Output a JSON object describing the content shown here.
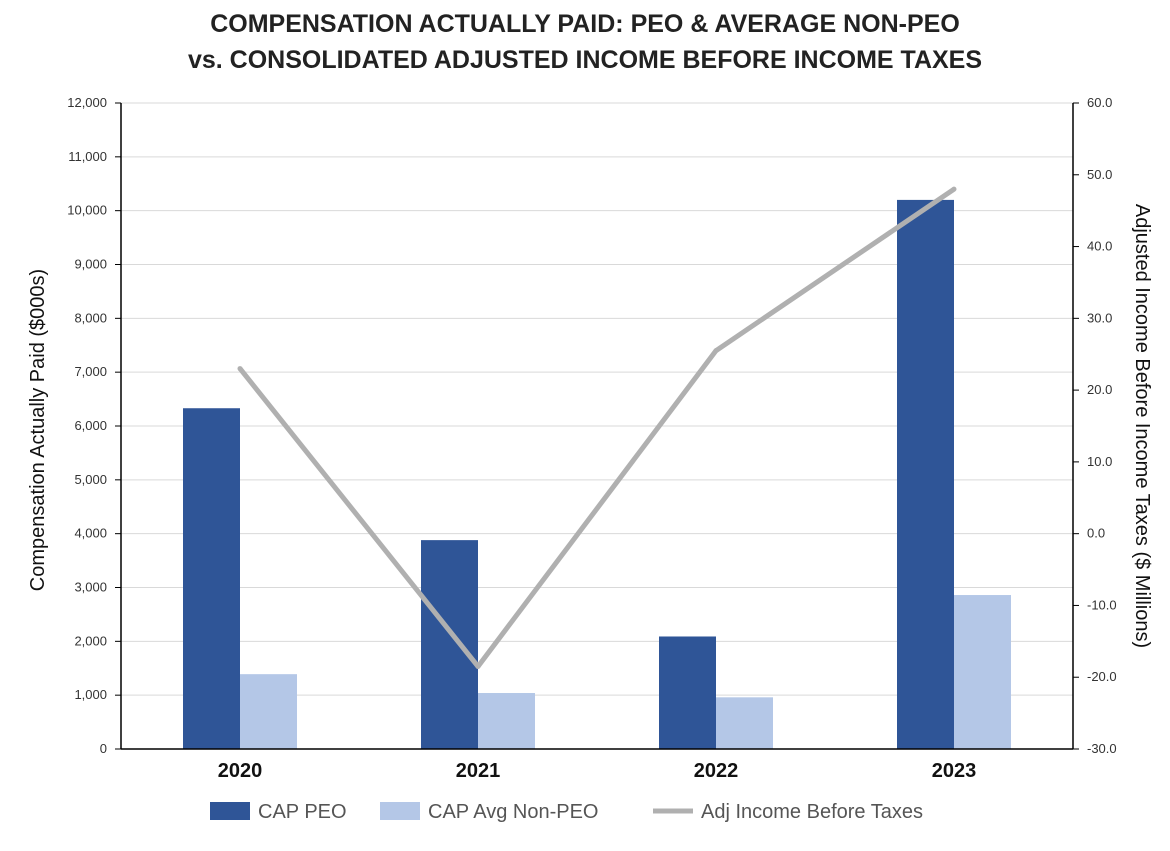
{
  "chart_data": {
    "type": "bar",
    "title": "COMPENSATION ACTUALLY PAID: PEO & AVERAGE NON-PEO",
    "subtitle": "vs. CONSOLIDATED ADJUSTED INCOME BEFORE INCOME TAXES",
    "categories": [
      "2020",
      "2021",
      "2022",
      "2023"
    ],
    "ylabel": "Compensation Actually Paid ($000s)",
    "ylabel_right": "Adjusted Income Before Income Taxes ($ Millions)",
    "ylim": [
      0,
      12000
    ],
    "ylim_right": [
      -30,
      60
    ],
    "yticks": [
      "0",
      "1,000",
      "2,000",
      "3,000",
      "4,000",
      "5,000",
      "6,000",
      "7,000",
      "8,000",
      "9,000",
      "10,000",
      "11,000",
      "12,000"
    ],
    "yticks_right": [
      "-30.0",
      "-20.0",
      "-10.0",
      "0.0",
      "10.0",
      "20.0",
      "30.0",
      "40.0",
      "50.0",
      "60.0"
    ],
    "grid": true,
    "legend_position": "bottom",
    "series": [
      {
        "name": "CAP PEO",
        "type": "bar",
        "axis": "left",
        "color": "#2f5597",
        "values": [
          6330,
          3880,
          2090,
          10200
        ]
      },
      {
        "name": "CAP Avg Non-PEO",
        "type": "bar",
        "axis": "left",
        "color": "#b4c7e7",
        "values": [
          1390,
          1040,
          960,
          2860
        ]
      },
      {
        "name": "Adj Income Before Taxes",
        "type": "line",
        "axis": "right",
        "color": "#b0b0b0",
        "values": [
          23.0,
          -18.5,
          25.5,
          48.0
        ]
      }
    ]
  }
}
